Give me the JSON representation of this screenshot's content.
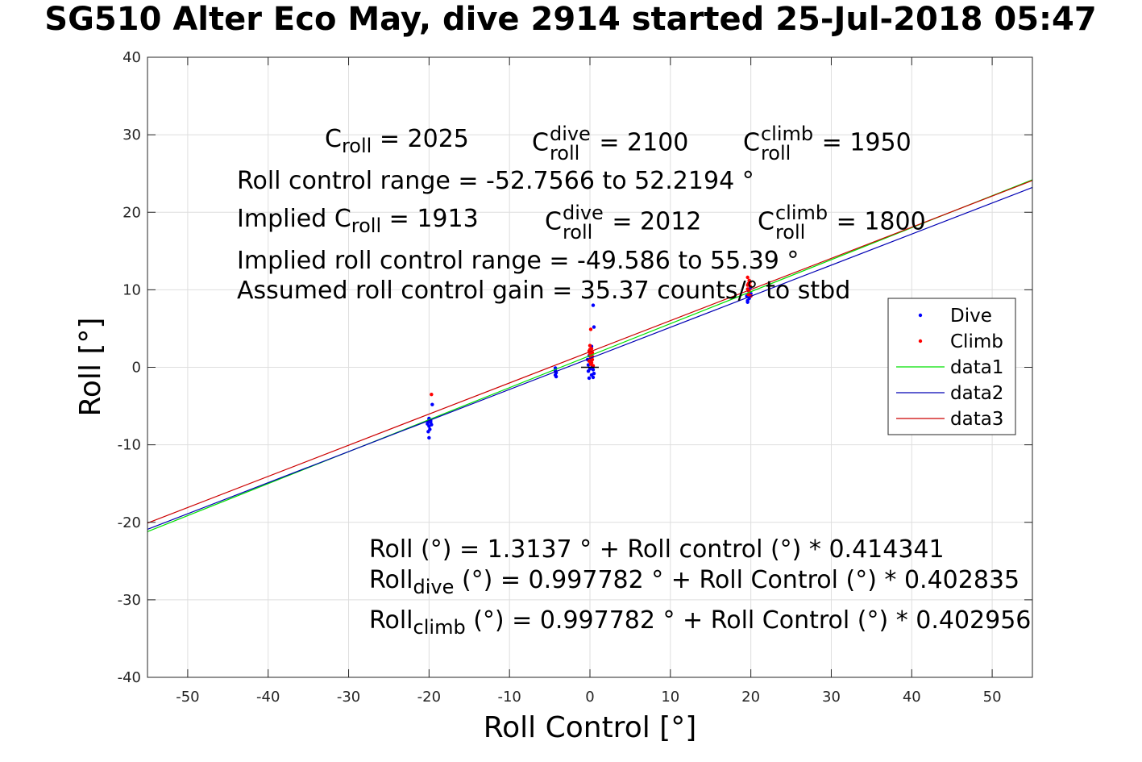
{
  "chart_data": {
    "type": "scatter",
    "title": "SG510 Alter Eco May, dive 2914 started 25-Jul-2018 05:47",
    "xlabel": "Roll Control [°]",
    "ylabel": "Roll [°]",
    "xlim": [
      -55,
      55
    ],
    "ylim": [
      -40,
      40
    ],
    "xticks": [
      -50,
      -40,
      -30,
      -20,
      -10,
      0,
      10,
      20,
      30,
      40,
      50
    ],
    "yticks": [
      -40,
      -30,
      -20,
      -10,
      0,
      10,
      20,
      30,
      40
    ],
    "grid": true,
    "legend": {
      "placement": "right",
      "entries": [
        "Dive",
        "Climb",
        "data1",
        "data2",
        "data3"
      ]
    },
    "colors": {
      "Dive": "#0000ff",
      "Climb": "#ff0000",
      "data1": "#00e000",
      "data2": "#0000b4",
      "data3": "#cc0000"
    },
    "series": [
      {
        "name": "Dive",
        "style": "points",
        "points": [
          [
            -20.0,
            -6.6
          ],
          [
            -20.1,
            -7.0
          ],
          [
            -19.8,
            -6.9
          ],
          [
            -20.2,
            -7.3
          ],
          [
            -20.0,
            -7.6
          ],
          [
            -19.9,
            -8.0
          ],
          [
            -20.1,
            -8.3
          ],
          [
            -19.8,
            -7.1
          ],
          [
            -20.0,
            -9.1
          ],
          [
            -19.6,
            -4.8
          ],
          [
            -20.0,
            -6.8
          ],
          [
            -19.7,
            -7.4
          ],
          [
            -4.3,
            -0.1
          ],
          [
            -4.3,
            -0.4
          ],
          [
            -4.2,
            -0.7
          ],
          [
            -4.3,
            -1.0
          ],
          [
            -4.2,
            -1.2
          ],
          [
            -4.3,
            -0.5
          ],
          [
            0.4,
            8.0
          ],
          [
            0.5,
            5.2
          ],
          [
            0.2,
            2.7
          ],
          [
            0.0,
            2.0
          ],
          [
            -0.1,
            1.5
          ],
          [
            0.2,
            1.1
          ],
          [
            0.1,
            0.7
          ],
          [
            -0.2,
            0.3
          ],
          [
            0.3,
            0.1
          ],
          [
            0.0,
            -0.2
          ],
          [
            0.4,
            -0.3
          ],
          [
            -0.2,
            -0.5
          ],
          [
            0.5,
            -0.8
          ],
          [
            0.2,
            -1.0
          ],
          [
            -0.1,
            -1.4
          ],
          [
            0.4,
            -1.3
          ],
          [
            0.1,
            0.5
          ],
          [
            -0.3,
            1.0
          ],
          [
            19.6,
            8.6
          ],
          [
            19.8,
            8.9
          ],
          [
            19.5,
            9.2
          ],
          [
            20.0,
            9.5
          ],
          [
            19.7,
            9.9
          ],
          [
            19.9,
            10.2
          ],
          [
            19.6,
            8.4
          ]
        ]
      },
      {
        "name": "Climb",
        "style": "points",
        "points": [
          [
            -19.7,
            -3.5
          ],
          [
            0.1,
            4.9
          ],
          [
            0.0,
            2.8
          ],
          [
            0.2,
            2.4
          ],
          [
            -0.1,
            2.1
          ],
          [
            0.3,
            1.9
          ],
          [
            0.0,
            1.7
          ],
          [
            0.2,
            1.5
          ],
          [
            0.1,
            1.2
          ],
          [
            0.3,
            1.0
          ],
          [
            -0.1,
            0.8
          ],
          [
            0.2,
            0.6
          ],
          [
            0.1,
            0.4
          ],
          [
            0.4,
            0.2
          ],
          [
            0.0,
            2.3
          ],
          [
            0.3,
            1.4
          ],
          [
            19.6,
            11.6
          ],
          [
            19.8,
            11.2
          ],
          [
            19.7,
            10.8
          ],
          [
            19.9,
            10.5
          ],
          [
            19.6,
            10.1
          ],
          [
            19.8,
            9.8
          ],
          [
            19.7,
            9.4
          ],
          [
            20.0,
            9.2
          ],
          [
            19.6,
            10.6
          ],
          [
            19.9,
            11.0
          ]
        ]
      },
      {
        "name": "data1",
        "style": "line",
        "x": [
          -55,
          55
        ],
        "y": [
          -21.2,
          24.2
        ]
      },
      {
        "name": "data2",
        "style": "line",
        "x": [
          -55,
          55
        ],
        "y": [
          -20.9,
          23.2
        ]
      },
      {
        "name": "data3",
        "style": "line",
        "x": [
          -55,
          55
        ],
        "y": [
          -20.1,
          24.1
        ]
      }
    ],
    "annotations": {
      "c_roll_line": {
        "c_roll": {
          "base": "C",
          "sub": "roll",
          "value": " = 2025"
        },
        "c_roll_dive": {
          "base": "C",
          "sup": "dive",
          "sub": "roll",
          "value": " = 2100"
        },
        "c_roll_climb": {
          "base": "C",
          "sup": "climb",
          "sub": "roll",
          "value": " = 1950"
        }
      },
      "roll_control_range": "Roll control range = -52.7566 to 52.2194 °",
      "implied_line": {
        "implied_c_roll": {
          "base": "Implied C",
          "sub": "roll",
          "value": " = 1913"
        },
        "implied_c_roll_dive": {
          "base": "C",
          "sup": "dive",
          "sub": "roll",
          "value": " = 2012"
        },
        "implied_c_roll_climb": {
          "base": "C",
          "sup": "climb",
          "sub": "roll",
          "value": " = 1800"
        }
      },
      "implied_roll_control_range": "Implied roll control range = -49.586 to 55.39 °",
      "assumed_gain": "Assumed roll control gain = 35.37 counts/° to stbd",
      "fit_all": "Roll (°) = 1.3137 ° + Roll control (°) * 0.414341",
      "fit_dive": {
        "base": "Roll",
        "sub": "dive",
        "rest": " (°) = 0.997782 ° + Roll Control (°) * 0.402835"
      },
      "fit_climb": {
        "base": "Roll",
        "sub": "climb",
        "rest": " (°) = 0.997782 ° + Roll Control (°) * 0.402956"
      }
    }
  }
}
